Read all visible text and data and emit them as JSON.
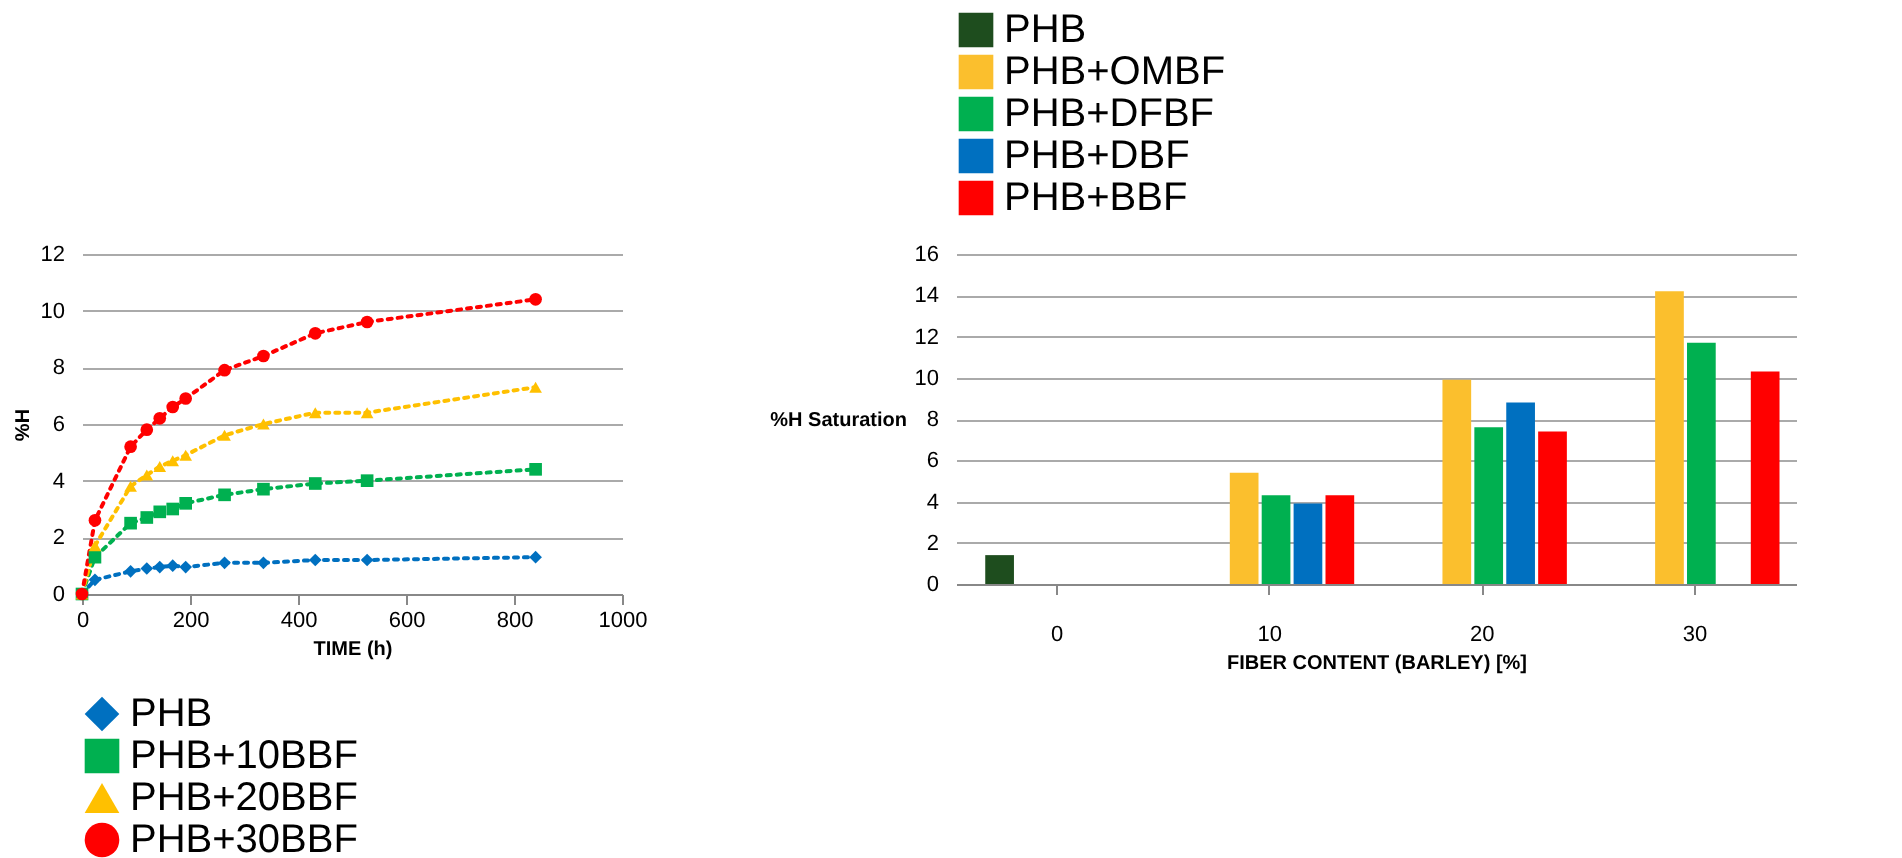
{
  "chart_data": [
    {
      "type": "line",
      "xlabel": "TIME (h)",
      "ylabel": "%H",
      "x": [
        0,
        24,
        90,
        120,
        144,
        168,
        192,
        264,
        336,
        432,
        528,
        840
      ],
      "xlim": [
        0,
        1000
      ],
      "xticks": [
        0,
        200,
        400,
        600,
        800,
        1000
      ],
      "ylim": [
        0,
        12
      ],
      "yticks": [
        0,
        2,
        4,
        6,
        8,
        10,
        12
      ],
      "grid": "y",
      "legend": "bottom",
      "line_style": "dotted",
      "series": [
        {
          "name": "PHB",
          "color": "#0070c0",
          "marker": "diamond",
          "values": [
            0,
            0.5,
            0.8,
            0.9,
            0.95,
            1.0,
            0.95,
            1.1,
            1.1,
            1.2,
            1.2,
            1.3
          ]
        },
        {
          "name": "PHB+10BBF",
          "color": "#00b050",
          "marker": "square",
          "values": [
            0,
            1.3,
            2.5,
            2.7,
            2.9,
            3.0,
            3.2,
            3.5,
            3.7,
            3.9,
            4.0,
            4.4
          ]
        },
        {
          "name": "PHB+20BBF",
          "color": "#ffc000",
          "marker": "triangle",
          "values": [
            0,
            1.7,
            3.8,
            4.2,
            4.5,
            4.7,
            4.9,
            5.6,
            6.0,
            6.4,
            6.4,
            7.3
          ]
        },
        {
          "name": "PHB+30BBF",
          "color": "#ff0000",
          "marker": "circle",
          "values": [
            0,
            2.6,
            5.2,
            5.8,
            6.2,
            6.6,
            6.9,
            7.9,
            8.4,
            9.2,
            9.6,
            10.4
          ]
        }
      ]
    },
    {
      "type": "bar",
      "xlabel": "FIBER CONTENT (BARLEY) [%]",
      "ylabel": "%H Saturation",
      "categories": [
        "0",
        "10",
        "20",
        "30"
      ],
      "ylim": [
        0,
        16
      ],
      "yticks": [
        0,
        2,
        4,
        6,
        8,
        10,
        12,
        14,
        16
      ],
      "grid": "y",
      "legend": "top",
      "series": [
        {
          "name": "PHB",
          "color": "#1e4d1e",
          "values": [
            1.4,
            null,
            null,
            null
          ]
        },
        {
          "name": "PHB+OMBF",
          "color": "#fbbf2d",
          "values": [
            null,
            5.4,
            9.9,
            14.2
          ]
        },
        {
          "name": "PHB+DFBF",
          "color": "#00b050",
          "values": [
            null,
            4.3,
            7.6,
            11.7
          ]
        },
        {
          "name": "PHB+DBF",
          "color": "#0070c0",
          "values": [
            null,
            3.9,
            8.8,
            null
          ]
        },
        {
          "name": "PHB+BBF",
          "color": "#ff0000",
          "values": [
            null,
            4.3,
            7.4,
            10.3
          ]
        }
      ]
    }
  ]
}
